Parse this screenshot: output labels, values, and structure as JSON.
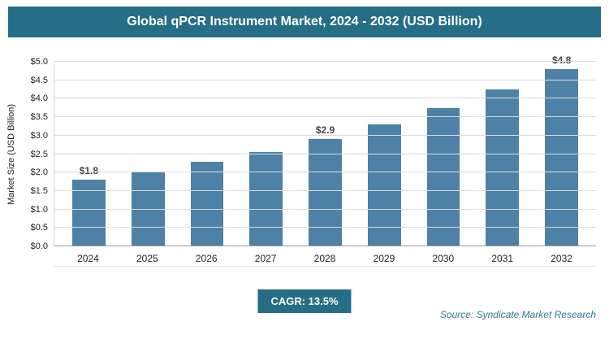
{
  "header": {
    "title": "Global qPCR Instrument Market, 2024 - 2032 (USD Billion)"
  },
  "chart_data": {
    "type": "bar",
    "title": "Global qPCR Instrument Market, 2024 - 2032 (USD Billion)",
    "categories": [
      "2024",
      "2025",
      "2026",
      "2027",
      "2028",
      "2029",
      "2030",
      "2031",
      "2032"
    ],
    "values": [
      1.8,
      2.0,
      2.3,
      2.55,
      2.9,
      3.3,
      3.75,
      4.25,
      4.8
    ],
    "data_labels": {
      "2024": "$1.8",
      "2028": "$2.9",
      "2032": "$4.8"
    },
    "xlabel": "",
    "ylabel": "Market Size (USD Billion)",
    "ylim": [
      0,
      5
    ],
    "ytick_step": 0.5,
    "ytick_prefix": "$",
    "grid": true,
    "legend": false,
    "bar_color": "#4e81a6",
    "colors": {
      "header_bg": "#266e85",
      "bar": "#4e81a6",
      "grid": "#dcdcdc",
      "axis": "#9a9a9a",
      "data_label": "#444444",
      "source_text": "#337b93"
    }
  },
  "footer": {
    "cagr_label": "CAGR: 13.5%",
    "source": "Source: Syndicate Market Research"
  }
}
